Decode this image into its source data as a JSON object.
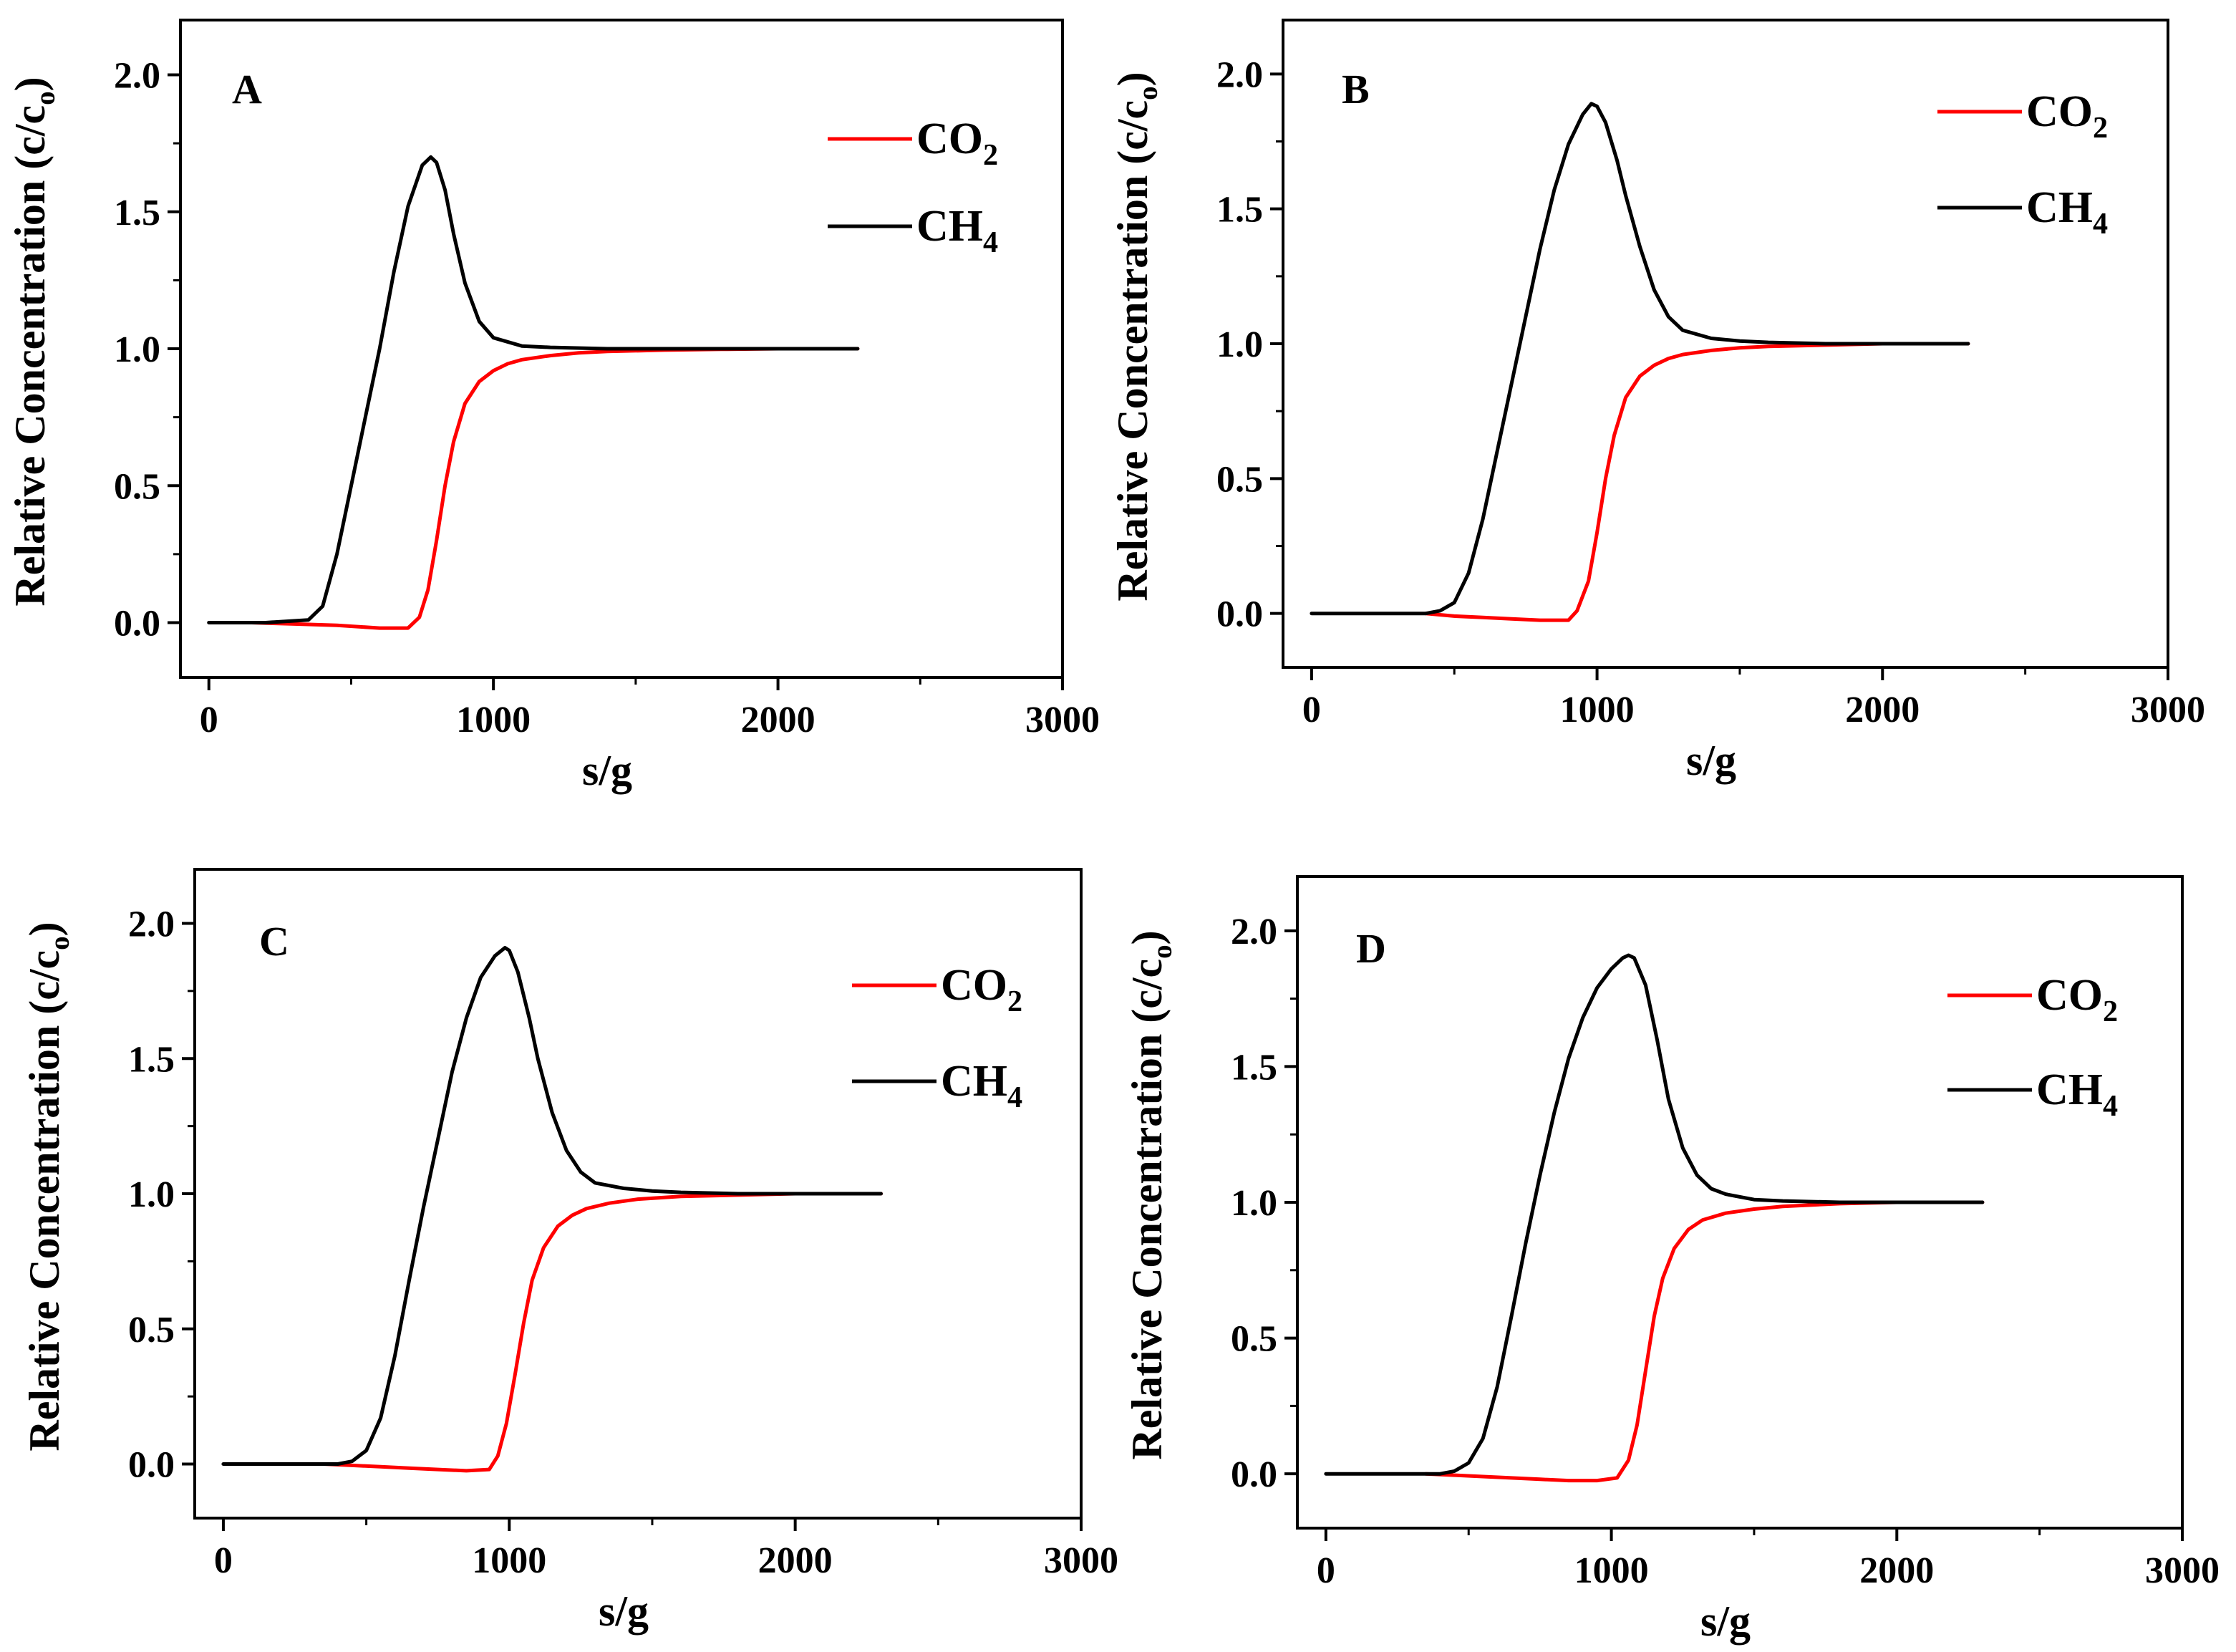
{
  "figure": {
    "panel_count": 4,
    "colors": {
      "co2": "#ff0000",
      "ch4": "#000000",
      "axis": "#000000"
    }
  },
  "chart_data": [
    {
      "panel": "A",
      "type": "line",
      "xlabel": "s/g",
      "ylabel": "Relative Concentration (c/c",
      "ylabel_sub": "o",
      "ylabel_close": ")",
      "xlim": [
        -100,
        3000
      ],
      "ylim": [
        -0.2,
        2.2
      ],
      "x_ticks": [
        0,
        1000,
        2000,
        3000
      ],
      "x_tick_labels": [
        "0",
        "1000",
        "2000",
        "3000"
      ],
      "y_ticks": [
        0.0,
        0.5,
        1.0,
        1.5,
        2.0
      ],
      "y_tick_labels": [
        "0.0",
        "0.5",
        "1.0",
        "1.5",
        "2.0"
      ],
      "legend_position": "top-right",
      "series": [
        {
          "name": "CO2",
          "label_main": "CO",
          "label_sub": "2",
          "color": "#ff0000",
          "x": [
            150,
            300,
            450,
            600,
            700,
            740,
            770,
            800,
            830,
            860,
            900,
            950,
            1000,
            1050,
            1100,
            1200,
            1300,
            1400,
            1600,
            1800,
            2000,
            2280
          ],
          "y": [
            0.0,
            -0.005,
            -0.01,
            -0.02,
            -0.02,
            0.02,
            0.12,
            0.3,
            0.5,
            0.66,
            0.8,
            0.88,
            0.92,
            0.945,
            0.96,
            0.975,
            0.985,
            0.99,
            0.995,
            0.998,
            1.0,
            1.0
          ]
        },
        {
          "name": "CH4",
          "label_main": "CH",
          "label_sub": "4",
          "color": "#000000",
          "x": [
            0,
            200,
            350,
            400,
            450,
            500,
            550,
            600,
            650,
            700,
            750,
            780,
            800,
            830,
            860,
            900,
            950,
            1000,
            1100,
            1200,
            1400,
            1600,
            1800,
            2000,
            2280
          ],
          "y": [
            0.0,
            0.0,
            0.01,
            0.06,
            0.25,
            0.5,
            0.75,
            1.0,
            1.28,
            1.52,
            1.67,
            1.7,
            1.68,
            1.58,
            1.42,
            1.24,
            1.1,
            1.04,
            1.01,
            1.005,
            1.0,
            1.0,
            1.0,
            1.0,
            1.0
          ]
        }
      ]
    },
    {
      "panel": "B",
      "type": "line",
      "xlabel": "s/g",
      "ylabel": "Relative Concentration (c/c",
      "ylabel_sub": "o",
      "ylabel_close": ")",
      "xlim": [
        -100,
        3000
      ],
      "ylim": [
        -0.2,
        2.2
      ],
      "x_ticks": [
        0,
        1000,
        2000,
        3000
      ],
      "x_tick_labels": [
        "0",
        "1000",
        "2000",
        "3000"
      ],
      "y_ticks": [
        0.0,
        0.5,
        1.0,
        1.5,
        2.0
      ],
      "y_tick_labels": [
        "0.0",
        "0.5",
        "1.0",
        "1.5",
        "2.0"
      ],
      "legend_position": "top-right",
      "series": [
        {
          "name": "CO2",
          "label_main": "CO",
          "label_sub": "2",
          "color": "#ff0000",
          "x": [
            400,
            500,
            600,
            700,
            800,
            900,
            930,
            970,
            1000,
            1030,
            1060,
            1100,
            1150,
            1200,
            1250,
            1300,
            1400,
            1500,
            1600,
            1800,
            2000,
            2300
          ],
          "y": [
            0.0,
            -0.01,
            -0.015,
            -0.02,
            -0.025,
            -0.025,
            0.01,
            0.12,
            0.3,
            0.5,
            0.66,
            0.8,
            0.88,
            0.92,
            0.945,
            0.96,
            0.975,
            0.985,
            0.99,
            0.995,
            1.0,
            1.0
          ]
        },
        {
          "name": "CH4",
          "label_main": "CH",
          "label_sub": "4",
          "color": "#000000",
          "x": [
            0,
            200,
            400,
            450,
            500,
            550,
            600,
            650,
            700,
            750,
            800,
            850,
            900,
            950,
            980,
            1000,
            1030,
            1070,
            1100,
            1150,
            1200,
            1250,
            1300,
            1400,
            1500,
            1600,
            1800,
            2000,
            2300
          ],
          "y": [
            0.0,
            0.0,
            0.0,
            0.01,
            0.04,
            0.15,
            0.35,
            0.6,
            0.85,
            1.1,
            1.35,
            1.57,
            1.74,
            1.85,
            1.89,
            1.88,
            1.82,
            1.68,
            1.55,
            1.36,
            1.2,
            1.1,
            1.05,
            1.02,
            1.01,
            1.005,
            1.0,
            1.0,
            1.0
          ]
        }
      ]
    },
    {
      "panel": "C",
      "type": "line",
      "xlabel": "s/g",
      "ylabel": "Relative Concentration (c/c",
      "ylabel_sub": "o",
      "ylabel_close": ")",
      "xlim": [
        -100,
        3000
      ],
      "ylim": [
        -0.2,
        2.2
      ],
      "x_ticks": [
        0,
        1000,
        2000,
        3000
      ],
      "x_tick_labels": [
        "0",
        "1000",
        "2000",
        "3000"
      ],
      "y_ticks": [
        0.0,
        0.5,
        1.0,
        1.5,
        2.0
      ],
      "y_tick_labels": [
        "0.0",
        "0.5",
        "1.0",
        "1.5",
        "2.0"
      ],
      "legend_position": "top-right",
      "series": [
        {
          "name": "CO2",
          "label_main": "CO",
          "label_sub": "2",
          "color": "#ff0000",
          "x": [
            350,
            450,
            550,
            650,
            750,
            850,
            930,
            960,
            990,
            1020,
            1050,
            1080,
            1120,
            1170,
            1220,
            1270,
            1350,
            1450,
            1600,
            1800,
            2000,
            2300
          ],
          "y": [
            0.0,
            -0.005,
            -0.01,
            -0.015,
            -0.02,
            -0.025,
            -0.02,
            0.03,
            0.15,
            0.33,
            0.52,
            0.68,
            0.8,
            0.88,
            0.92,
            0.945,
            0.965,
            0.98,
            0.99,
            0.995,
            1.0,
            1.0
          ]
        },
        {
          "name": "CH4",
          "label_main": "CH",
          "label_sub": "4",
          "color": "#000000",
          "x": [
            0,
            200,
            400,
            450,
            500,
            550,
            600,
            650,
            700,
            750,
            800,
            850,
            900,
            950,
            985,
            1000,
            1030,
            1070,
            1100,
            1150,
            1200,
            1250,
            1300,
            1400,
            1500,
            1600,
            1800,
            2000,
            2300
          ],
          "y": [
            0.0,
            0.0,
            0.0,
            0.01,
            0.05,
            0.17,
            0.4,
            0.68,
            0.95,
            1.2,
            1.45,
            1.65,
            1.8,
            1.88,
            1.91,
            1.9,
            1.82,
            1.65,
            1.5,
            1.3,
            1.16,
            1.08,
            1.04,
            1.02,
            1.01,
            1.005,
            1.0,
            1.0,
            1.0
          ]
        }
      ]
    },
    {
      "panel": "D",
      "type": "line",
      "xlabel": "s/g",
      "ylabel": "Relative Concentration (c/c",
      "ylabel_sub": "o",
      "ylabel_close": ")",
      "xlim": [
        -100,
        3000
      ],
      "ylim": [
        -0.2,
        2.2
      ],
      "x_ticks": [
        0,
        1000,
        2000,
        3000
      ],
      "x_tick_labels": [
        "0",
        "1000",
        "2000",
        "3000"
      ],
      "y_ticks": [
        0.0,
        0.5,
        1.0,
        1.5,
        2.0
      ],
      "y_tick_labels": [
        "0.0",
        "0.5",
        "1.0",
        "1.5",
        "2.0"
      ],
      "legend_position": "top-right",
      "series": [
        {
          "name": "CO2",
          "label_main": "CO",
          "label_sub": "2",
          "color": "#ff0000",
          "x": [
            350,
            450,
            550,
            650,
            750,
            850,
            950,
            1020,
            1060,
            1090,
            1120,
            1150,
            1180,
            1220,
            1270,
            1320,
            1400,
            1500,
            1600,
            1800,
            2000,
            2300
          ],
          "y": [
            0.0,
            -0.005,
            -0.01,
            -0.015,
            -0.02,
            -0.025,
            -0.025,
            -0.015,
            0.05,
            0.18,
            0.38,
            0.58,
            0.72,
            0.83,
            0.9,
            0.935,
            0.96,
            0.975,
            0.985,
            0.995,
            1.0,
            1.0
          ]
        },
        {
          "name": "CH4",
          "label_main": "CH",
          "label_sub": "4",
          "color": "#000000",
          "x": [
            0,
            200,
            400,
            450,
            500,
            550,
            600,
            650,
            700,
            750,
            800,
            850,
            900,
            950,
            1000,
            1040,
            1060,
            1080,
            1120,
            1160,
            1200,
            1250,
            1300,
            1350,
            1400,
            1500,
            1600,
            1800,
            2000,
            2300
          ],
          "y": [
            0.0,
            0.0,
            0.0,
            0.01,
            0.04,
            0.13,
            0.32,
            0.58,
            0.85,
            1.1,
            1.33,
            1.53,
            1.68,
            1.79,
            1.86,
            1.9,
            1.91,
            1.9,
            1.8,
            1.6,
            1.38,
            1.2,
            1.1,
            1.05,
            1.03,
            1.01,
            1.005,
            1.0,
            1.0,
            1.0
          ]
        }
      ]
    }
  ]
}
